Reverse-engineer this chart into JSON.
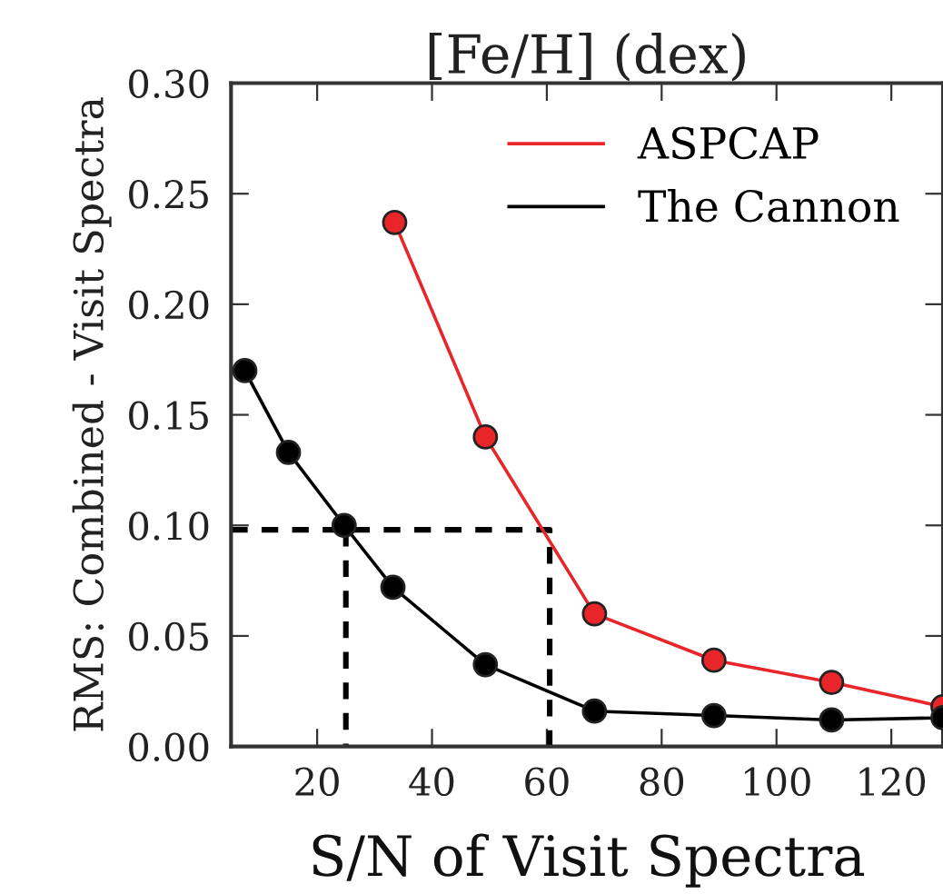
{
  "chart_data": {
    "type": "line",
    "title": "[Fe/H] (dex)",
    "xlabel": "S/N of Visit Spectra",
    "ylabel": "RMS: Combined - Visit Spectra",
    "series": [
      {
        "name": "ASPCAP",
        "color": "#e8262a",
        "marker": "circle",
        "x": [
          33.5,
          49.3,
          68.3,
          89.1,
          109.6,
          129
        ],
        "values": [
          0.237,
          0.14,
          0.06,
          0.039,
          0.029,
          0.018
        ]
      },
      {
        "name": "The Cannon",
        "color": "#000000",
        "marker": "circle",
        "x": [
          7.4,
          15,
          24.7,
          33.2,
          49.3,
          68.3,
          89.1,
          109.6,
          129
        ],
        "values": [
          0.17,
          0.133,
          0.1,
          0.072,
          0.037,
          0.016,
          0.014,
          0.012,
          0.013
        ]
      },
      {
        "type": "line",
        "color": "#000000",
        "line_style": "dashed",
        "marker": "none",
        "x": [
          5,
          60.5,
          60.5
        ],
        "values": [
          0.098,
          0.098,
          0
        ]
      },
      {
        "type": "line",
        "color": "#000000",
        "line_style": "dashed",
        "marker": "none",
        "x": [
          25,
          25
        ],
        "values": [
          0.098,
          0
        ]
      }
    ],
    "xlim": [
      5,
      129
    ],
    "xticks": [
      20,
      40,
      60,
      80,
      100,
      120
    ],
    "ylim": [
      0,
      0.3
    ],
    "yticks": [
      {
        "value": 0,
        "label": "0.00"
      },
      {
        "value": 0.05,
        "label": "0.05"
      },
      {
        "value": 0.1,
        "label": "0.10"
      },
      {
        "value": 0.15,
        "label": "0.15"
      },
      {
        "value": 0.2,
        "label": "0.20"
      },
      {
        "value": 0.25,
        "label": "0.25"
      },
      {
        "value": 0.3,
        "label": "0.30"
      }
    ],
    "legend": "top right",
    "grid": false
  }
}
